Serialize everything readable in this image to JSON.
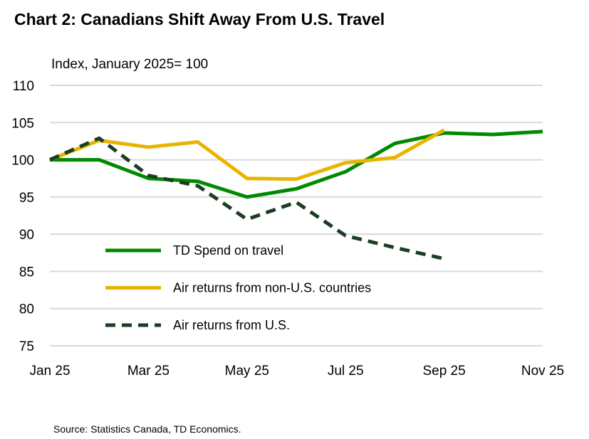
{
  "title": "Chart 2: Canadians Shift Away From U.S. Travel",
  "source": "Source: Statistics Canada, TD Economics.",
  "chart_data": {
    "type": "line",
    "title": "Chart 2: Canadians Shift Away From U.S. Travel",
    "ylabel": "Index, January 2025= 100",
    "xlabel": "",
    "ylim": [
      75,
      110
    ],
    "yticks": [
      "75",
      "80",
      "85",
      "90",
      "95",
      "100",
      "105",
      "110"
    ],
    "x": [
      "Jan 25",
      "Feb 25",
      "Mar 25",
      "Apr 25",
      "May 25",
      "Jun 25",
      "Jul 25",
      "Aug 25",
      "Sep 25",
      "Oct 25",
      "Nov 25"
    ],
    "xtick_labels": [
      "Jan 25",
      "Mar 25",
      "May 25",
      "Jul 25",
      "Sep 25",
      "Nov 25"
    ],
    "grid": true,
    "legend_placement": "bottom-left inside",
    "series": [
      {
        "name": "TD Spend on travel",
        "color": "#008a00",
        "dashed": false,
        "values": [
          100,
          100,
          97.5,
          97.1,
          95.0,
          96.1,
          98.4,
          102.2,
          103.6,
          103.4,
          103.8
        ]
      },
      {
        "name": "Air returns from non-U.S. countries",
        "color": "#e8b400",
        "dashed": false,
        "values": [
          100,
          102.6,
          101.7,
          102.4,
          97.5,
          97.4,
          99.6,
          100.3,
          104.0,
          null,
          null
        ]
      },
      {
        "name": "Air returns from U.S.",
        "color": "#1c3d23",
        "dashed": true,
        "values": [
          100,
          102.9,
          97.9,
          96.5,
          92.0,
          94.3,
          89.8,
          88.2,
          86.7,
          null,
          null
        ]
      }
    ]
  }
}
